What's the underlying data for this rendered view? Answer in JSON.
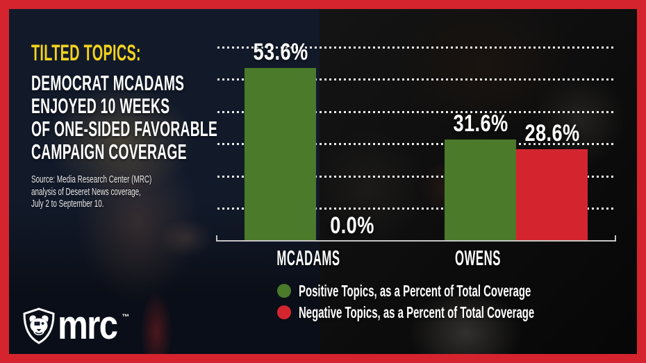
{
  "frame": {
    "border_color": "#d5242e",
    "background_color": "#121a2a"
  },
  "title": {
    "highlight": "TILTED TOPICS:",
    "highlight_color": "#f3d21d",
    "lines": [
      "DEMOCRAT MCADAMS",
      "ENJOYED 10 WEEKS",
      "OF ONE-SIDED FAVORABLE",
      "CAMPAIGN COVERAGE"
    ]
  },
  "source": {
    "lines": [
      "Source: Media Research Center (MRC)",
      "analysis of Deseret News coverage,",
      "July 2 to September 10."
    ]
  },
  "logo": {
    "text": "mrc",
    "trademark": "™",
    "icon": "bulldog-shield"
  },
  "chart_data": {
    "type": "bar",
    "categories": [
      "MCADAMS",
      "OWENS"
    ],
    "series": [
      {
        "name": "Positive Topics, as a Percent of Total Coverage",
        "color": "#4b7a2b",
        "values": [
          53.6,
          31.6
        ]
      },
      {
        "name": "Negative Topics, as a Percent of Total Coverage",
        "color": "#d4252f",
        "values": [
          0.0,
          28.6
        ]
      }
    ],
    "value_labels": [
      [
        "53.6%",
        "31.6%"
      ],
      [
        "0.0%",
        "28.6%"
      ]
    ],
    "ylabel": "",
    "xlabel": "",
    "ylim": [
      0,
      60
    ],
    "gridline_values": [
      10,
      20,
      30,
      40,
      50,
      60
    ],
    "grid_style": "dotted-horizontal-white",
    "axis_color": "#c6c6c6",
    "legend_position": "bottom"
  }
}
